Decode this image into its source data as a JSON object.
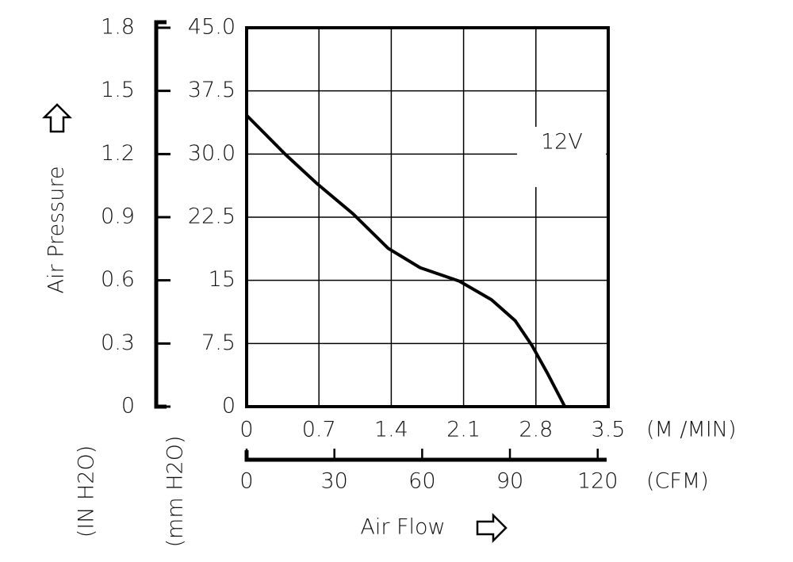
{
  "chart_data": {
    "type": "line",
    "x_label": "Air Flow",
    "x_unit": "(M /MIN)",
    "x2_unit": "(CFM)",
    "y_label": "Air Pressure",
    "y_unit": "(mm H2O)",
    "y2_unit": "(IN H2O)",
    "annotation": "12V",
    "grid": true,
    "color": "#000000",
    "x": [
      0,
      0.38,
      0.68,
      1.03,
      1.37,
      1.68,
      2.06,
      2.37,
      2.6,
      2.76,
      2.91,
      3.08
    ],
    "series": [
      {
        "name": "12V",
        "color": "#000000",
        "values": [
          34.6,
          29.9,
          26.5,
          22.9,
          18.8,
          16.5,
          14.9,
          12.7,
          10.2,
          7.3,
          4.0,
          0
        ]
      }
    ],
    "xlim": [
      0,
      3.5
    ],
    "xticks": [
      0,
      0.7,
      1.4,
      2.1,
      2.8,
      3.5
    ],
    "x2lim": [
      0,
      123.6
    ],
    "x2ticks": [
      0,
      30,
      60,
      90,
      120
    ],
    "ylim": [
      0,
      45
    ],
    "yticks": [
      0,
      7.5,
      15,
      22.5,
      {
        "value": 30,
        "label": "30.0"
      },
      37.5,
      {
        "value": 45,
        "label": "45.0"
      }
    ],
    "y2lim": [
      0,
      1.8
    ],
    "y2ticks": [
      0,
      0.3,
      0.6,
      0.9,
      1.2,
      1.5,
      1.8
    ]
  }
}
